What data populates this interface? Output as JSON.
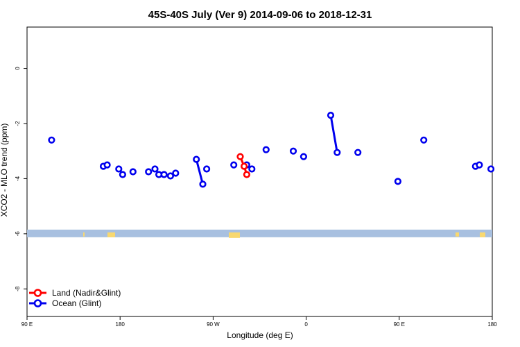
{
  "chart_data": {
    "type": "line",
    "title": "45S-40S July (Ver 9)   2014-09-06 to 2018-12-31",
    "xlabel": "Longitude (deg E)",
    "ylabel": "XCO2 - MLO trend (ppm)",
    "xlim": [
      90,
      270
    ],
    "ylim": [
      -9,
      1.5
    ],
    "x_ticks": [
      {
        "value": 90,
        "label": "90 E"
      },
      {
        "value": 126,
        "label": "180"
      },
      {
        "value": 162,
        "label": "90 W"
      },
      {
        "value": 198,
        "label": "0"
      },
      {
        "value": 234,
        "label": "90 E"
      },
      {
        "value": 270,
        "label": "180"
      }
    ],
    "y_ticks": [
      {
        "value": 0,
        "label": "0"
      },
      {
        "value": -2,
        "label": "-2"
      },
      {
        "value": -4,
        "label": "-4"
      },
      {
        "value": -6,
        "label": "-6"
      },
      {
        "value": -8,
        "label": "-8"
      }
    ],
    "grid": false,
    "legend_position": "bottom-left",
    "map_strip": {
      "y": -6,
      "ocean_color": "#a8c0e0",
      "land_color": "#f8d870"
    },
    "series": [
      {
        "name": "Land (Nadir&Glint)",
        "color": "#ff0000",
        "segments": [
          [
            [
              172.5,
              -3.2
            ],
            [
              174.0,
              -3.55
            ],
            [
              175.0,
              -3.85
            ]
          ]
        ]
      },
      {
        "name": "Ocean (Glint)",
        "color": "#0000ee",
        "segments": [
          [
            [
              99.5,
              -2.6
            ]
          ],
          [
            [
              119.5,
              -3.55
            ]
          ],
          [
            [
              121.0,
              -3.5
            ]
          ],
          [
            [
              125.5,
              -3.65
            ]
          ],
          [
            [
              127.0,
              -3.85
            ]
          ],
          [
            [
              131.0,
              -3.75
            ]
          ],
          [
            [
              137.0,
              -3.75
            ]
          ],
          [
            [
              139.5,
              -3.65
            ]
          ],
          [
            [
              141.0,
              -3.85
            ]
          ],
          [
            [
              143.0,
              -3.85
            ]
          ],
          [
            [
              145.5,
              -3.9
            ]
          ],
          [
            [
              147.5,
              -3.8
            ]
          ],
          [
            [
              155.5,
              -3.3
            ],
            [
              158.0,
              -4.2
            ]
          ],
          [
            [
              159.5,
              -3.65
            ]
          ],
          [
            [
              170.0,
              -3.5
            ]
          ],
          [
            [
              175.0,
              -3.5
            ]
          ],
          [
            [
              177.0,
              -3.65
            ]
          ],
          [
            [
              182.5,
              -2.95
            ]
          ],
          [
            [
              193.0,
              -3.0
            ]
          ],
          [
            [
              197.0,
              -3.2
            ]
          ],
          [
            [
              207.5,
              -1.7
            ],
            [
              210.0,
              -3.05
            ]
          ],
          [
            [
              218.0,
              -3.05
            ]
          ],
          [
            [
              233.5,
              -4.1
            ]
          ],
          [
            [
              243.5,
              -2.6
            ]
          ],
          [
            [
              263.5,
              -3.55
            ]
          ],
          [
            [
              265.0,
              -3.5
            ]
          ],
          [
            [
              269.5,
              -3.65
            ]
          ]
        ]
      }
    ]
  }
}
